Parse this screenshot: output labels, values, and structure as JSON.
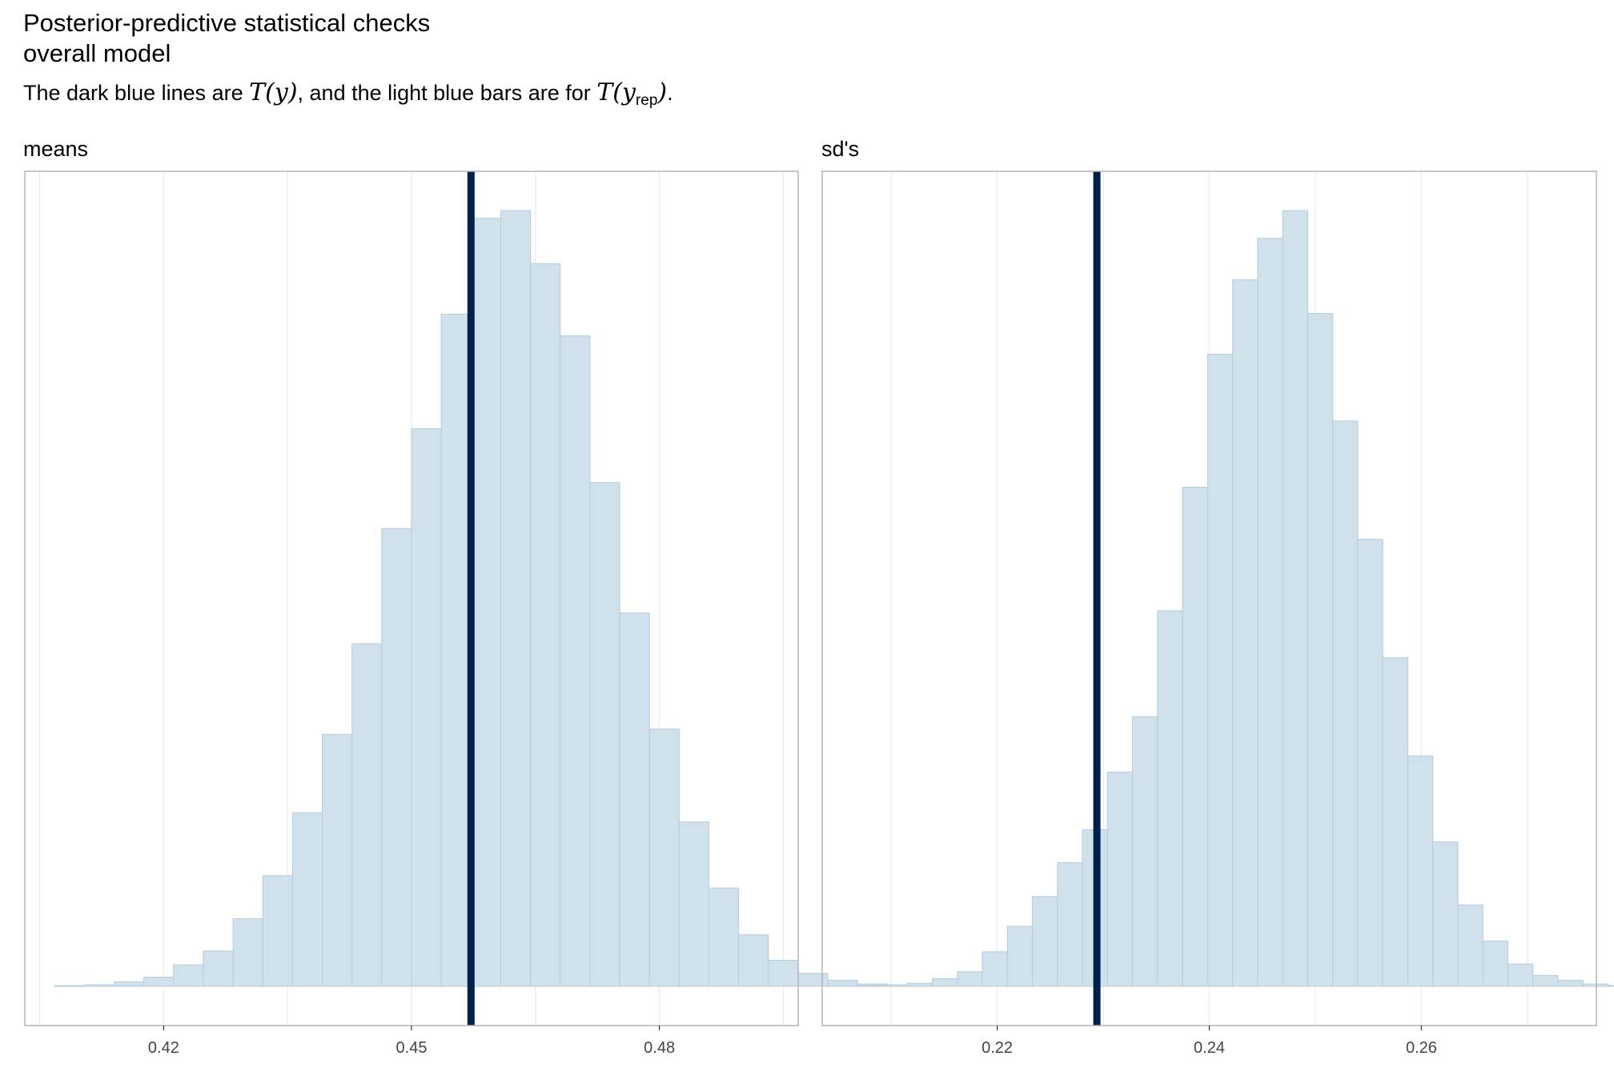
{
  "title_line1": "Posterior-predictive statistical checks",
  "title_line2": "overall model",
  "subtitle": {
    "prefix": "The dark blue lines are ",
    "t_of_y": "T(y)",
    "middle": ", and the light blue bars are for ",
    "t_open": "T(y",
    "rep": "rep",
    "t_close": ")",
    "suffix": "."
  },
  "colors": {
    "bar_fill": "#d1e1ec",
    "bar_stroke": "#b3cde0",
    "observed_line": "#011f4b",
    "grid": "#ebebeb",
    "panel_border": "#b3b3b3"
  },
  "chart_data": [
    {
      "type": "bar",
      "panel_label": "means",
      "xlim": [
        0.4032,
        0.4968
      ],
      "bin_width": 0.0036,
      "bin_start": 0.4068,
      "counts": [
        0.1,
        0.2,
        0.6,
        1.2,
        2.8,
        4.6,
        8.8,
        14.4,
        22.6,
        32.8,
        44.6,
        59.6,
        72.6,
        87.5,
        100.0,
        101.0,
        94.1,
        84.7,
        65.6,
        48.6,
        33.5,
        21.4,
        12.8,
        6.7,
        3.4,
        1.7,
        0.8,
        0.3,
        0.1
      ],
      "ymax": 101.0,
      "observed": 0.4572,
      "x_ticks": [
        "0.42",
        "0.45",
        "0.48"
      ],
      "x_tick_values": [
        0.42,
        0.45,
        0.48
      ],
      "grid_x": [
        0.405,
        0.42,
        0.435,
        0.45,
        0.465,
        0.48,
        0.495
      ]
    },
    {
      "type": "bar",
      "panel_label": "sd's",
      "xlim": [
        0.2035,
        0.2765
      ],
      "bin_width": 0.00236,
      "bin_start": 0.2068,
      "counts": [
        0.1,
        0.2,
        0.4,
        1.0,
        1.9,
        4.5,
        7.8,
        11.7,
        16.1,
        20.4,
        27.9,
        35.1,
        48.9,
        65.0,
        82.3,
        92.0,
        97.4,
        101.0,
        87.6,
        73.6,
        58.2,
        42.8,
        30.0,
        18.8,
        10.6,
        5.9,
        2.9,
        1.4,
        0.8,
        0.3,
        0.1,
        0.2
      ],
      "ymax": 101.0,
      "observed": 0.2294,
      "x_ticks": [
        "0.22",
        "0.24",
        "0.26"
      ],
      "x_tick_values": [
        0.22,
        0.24,
        0.26
      ],
      "grid_x": [
        0.21,
        0.22,
        0.23,
        0.24,
        0.25,
        0.26,
        0.27
      ]
    }
  ]
}
